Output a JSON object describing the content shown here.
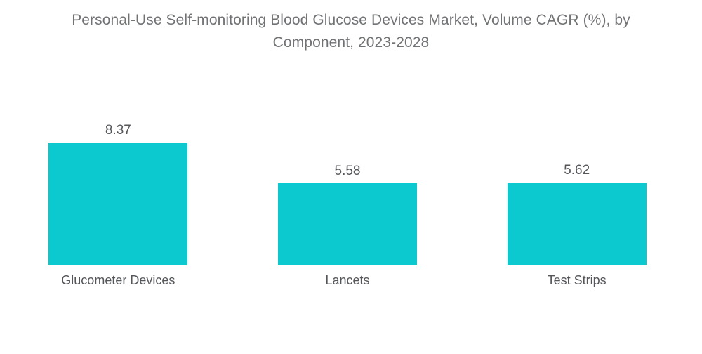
{
  "chart_data": {
    "type": "bar",
    "title": "Personal-Use Self-monitoring Blood Glucose Devices Market, Volume CAGR (%), by Component, 2023-2028",
    "categories": [
      "Glucometer Devices",
      "Lancets",
      "Test Strips"
    ],
    "values": [
      8.37,
      5.58,
      5.62
    ],
    "value_labels": [
      "8.37",
      "5.58",
      "5.62"
    ],
    "xlabel": "",
    "ylabel": "",
    "ylim": [
      0,
      9
    ],
    "grid": false,
    "legend": null,
    "bar_color": "#0bc9ce",
    "title_color": "#707274",
    "label_color": "#54565a",
    "background_color": "#ffffff"
  }
}
